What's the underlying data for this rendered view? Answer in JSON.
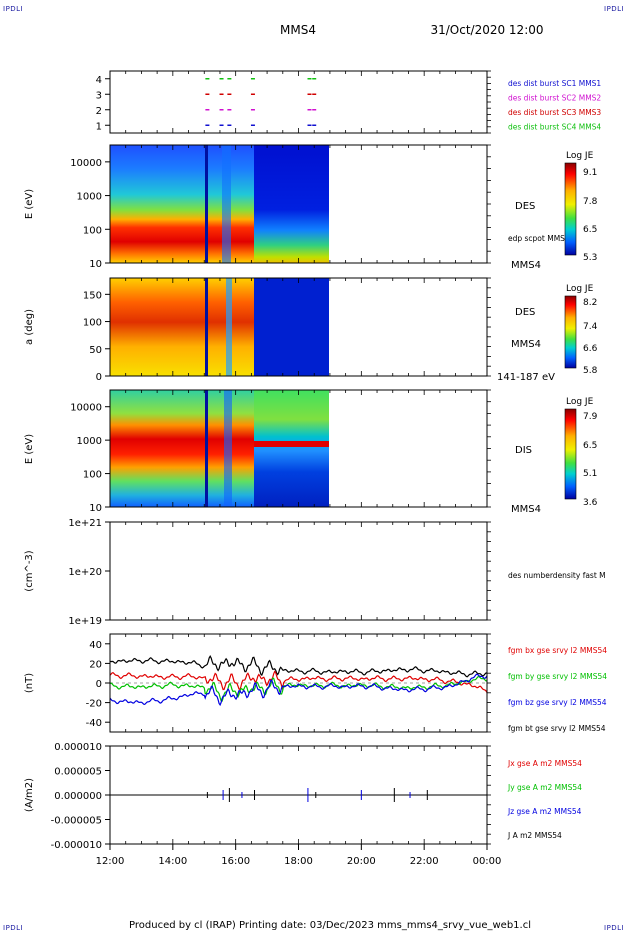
{
  "corner_label": "IPDLI",
  "header": {
    "spacecraft": "MMS4",
    "datetime": "31/Oct/2020 12:00"
  },
  "footer": "Produced by cl (IRAP)   Printing date: 03/Dec/2023   mms_mms4_srvy_vue_web1.cl",
  "chart_data": [
    {
      "type": "scatter",
      "panel": "burst-availability",
      "yticks": [
        "1",
        "2",
        "3",
        "4"
      ],
      "ylim": [
        0.5,
        4.5
      ],
      "series": [
        {
          "name": "des dist burst SC1 MMS1",
          "level": 1,
          "color": "#1010d0",
          "x_hours": [
            15.1,
            15.55,
            15.8,
            16.55,
            18.35,
            18.5
          ]
        },
        {
          "name": "des dist burst SC2 MMS2",
          "level": 2,
          "color": "#d010d0",
          "x_hours": [
            15.1,
            15.55,
            15.8,
            16.55,
            18.35,
            18.5
          ]
        },
        {
          "name": "des dist burst SC3 MMS3",
          "level": 3,
          "color": "#d00000",
          "x_hours": [
            15.1,
            15.55,
            15.8,
            16.55,
            18.35,
            18.5
          ]
        },
        {
          "name": "des dist burst SC4 MMS4",
          "level": 4,
          "color": "#10c010",
          "x_hours": [
            15.1,
            15.55,
            15.8,
            16.55,
            18.35,
            18.5
          ]
        }
      ]
    },
    {
      "type": "heatmap",
      "panel": "des-energy",
      "ylabel": "E (eV)",
      "yscale": "log",
      "yticks": [
        "10",
        "100",
        "1000",
        "10000"
      ],
      "side_labels": [
        "DES",
        "edp scpot MMS4",
        "MMS4"
      ],
      "colorbar": {
        "title": "Log JE",
        "ticks": [
          "9.1",
          "7.8",
          "6.5",
          "5.3"
        ]
      },
      "data_end_hours": 19.0
    },
    {
      "type": "heatmap",
      "panel": "des-pitch-angle",
      "ylabel": "a (deg)",
      "yticks": [
        "0",
        "50",
        "100",
        "150"
      ],
      "ylim": [
        0,
        180
      ],
      "side_labels": [
        "DES",
        "MMS4",
        "141-187 eV"
      ],
      "colorbar": {
        "title": "Log JE",
        "ticks": [
          "8.2",
          "7.4",
          "6.6",
          "5.8"
        ]
      },
      "data_end_hours": 19.0
    },
    {
      "type": "heatmap",
      "panel": "dis-energy",
      "ylabel": "E (eV)",
      "yscale": "log",
      "yticks": [
        "10",
        "100",
        "1000",
        "10000"
      ],
      "side_labels": [
        "DIS",
        "MMS4"
      ],
      "colorbar": {
        "title": "Log JE",
        "ticks": [
          "7.9",
          "6.5",
          "5.1",
          "3.6"
        ]
      },
      "data_end_hours": 19.0
    },
    {
      "type": "line",
      "panel": "density",
      "ylabel": "(cm^-3)",
      "yscale": "log",
      "yticks": [
        "1e+19",
        "1e+20",
        "1e+21"
      ],
      "series": [
        {
          "name": "des numberdensity fast M",
          "values": []
        }
      ]
    },
    {
      "type": "line",
      "panel": "magnetic-field",
      "ylabel": "(nT)",
      "yticks": [
        "-40",
        "-20",
        "0",
        "20",
        "40"
      ],
      "ylim": [
        -50,
        50
      ],
      "x_hours": [
        12,
        13,
        14,
        14.5,
        15,
        15.5,
        16,
        16.5,
        17,
        17.5,
        18,
        18.5,
        19,
        19.5,
        20,
        20.5,
        21,
        21.5,
        22,
        22.5,
        23,
        23.5,
        24
      ],
      "series": [
        {
          "name": "fgm bx gse srvy l2 MMS54",
          "color": "#e00000",
          "values": [
            8,
            7,
            6,
            7,
            5,
            2,
            0,
            5,
            4,
            3,
            4,
            5,
            4,
            5,
            4,
            5,
            4,
            5,
            4,
            3,
            1,
            -2,
            -8
          ]
        },
        {
          "name": "fgm by gse srvy l2 MMS54",
          "color": "#00c000",
          "values": [
            -3,
            -4,
            -2,
            -3,
            -4,
            -10,
            -8,
            -6,
            -4,
            -3,
            -2,
            -3,
            -2,
            -3,
            -2,
            -3,
            -4,
            -5,
            -4,
            -3,
            -1,
            3,
            5
          ]
        },
        {
          "name": "fgm bz gse srvy l2 MMS54",
          "color": "#0000e0",
          "values": [
            -18,
            -20,
            -16,
            -12,
            -10,
            -14,
            -12,
            -8,
            -6,
            -4,
            -3,
            -4,
            -3,
            -4,
            -3,
            -4,
            -6,
            -7,
            -6,
            -5,
            -2,
            5,
            8
          ]
        },
        {
          "name": "fgm bt gse srvy l2 MMS54",
          "color": "#000000",
          "values": [
            22,
            23,
            22,
            21,
            18,
            20,
            20,
            18,
            16,
            13,
            12,
            12,
            11,
            12,
            11,
            12,
            13,
            14,
            13,
            12,
            10,
            9,
            10
          ]
        }
      ]
    },
    {
      "type": "line",
      "panel": "current-density",
      "ylabel": "(A/m2)",
      "yticks": [
        "-0.000010",
        "-0.000005",
        "0.000000",
        "0.000005",
        "0.000010"
      ],
      "ylim": [
        -1e-05,
        1e-05
      ],
      "series": [
        {
          "name": "Jx gse A m2 MMS54",
          "color": "#e00000"
        },
        {
          "name": "Jy gse A m2 MMS54",
          "color": "#00c000"
        },
        {
          "name": "Jz gse A m2 MMS54",
          "color": "#0000e0"
        },
        {
          "name": "J A m2 MMS54",
          "color": "#000000"
        }
      ]
    }
  ],
  "time_axis": {
    "ticks": [
      "12:00",
      "14:00",
      "16:00",
      "18:00",
      "20:00",
      "22:00",
      "00:00"
    ],
    "xlim_hours": [
      12,
      24
    ]
  }
}
